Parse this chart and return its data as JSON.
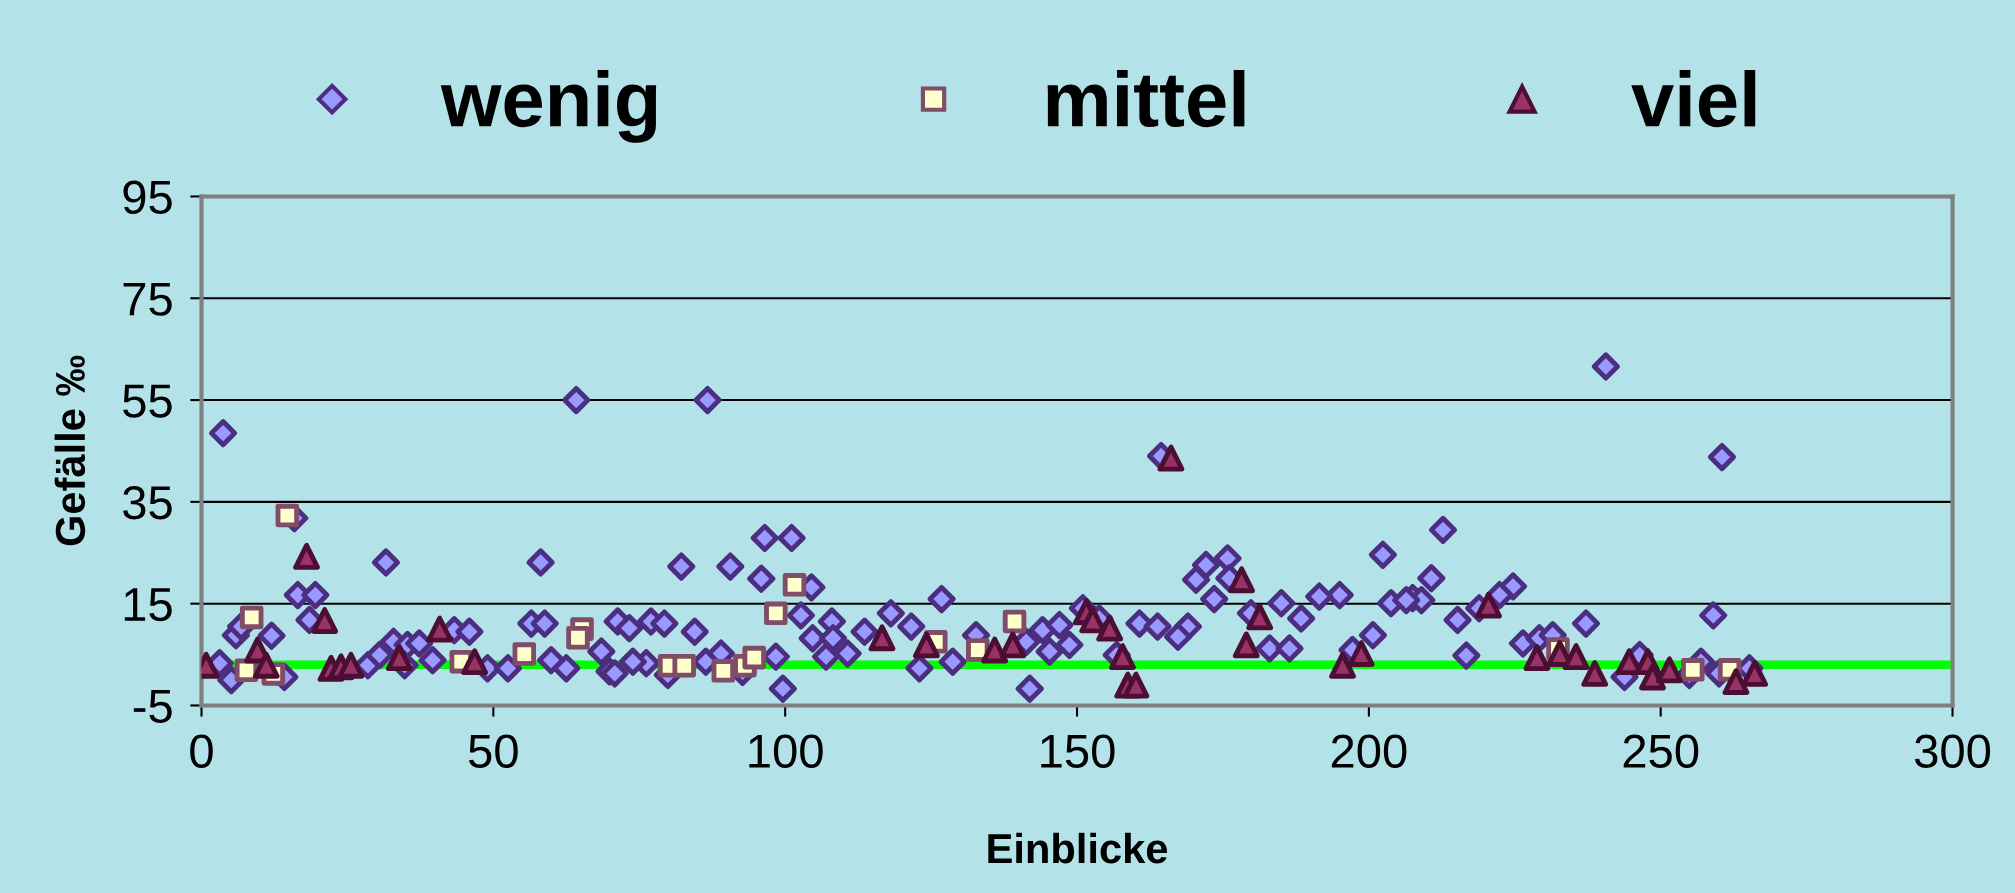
{
  "chart_data": {
    "type": "scatter",
    "xlabel": "Einblicke",
    "ylabel": "Gefälle ‰",
    "xlim": [
      0,
      300
    ],
    "xticks": [
      0,
      50,
      100,
      150,
      200,
      250,
      300
    ],
    "ylim": [
      -5,
      95
    ],
    "yticks": [
      -5,
      15,
      35,
      55,
      75,
      95
    ],
    "grid": "y",
    "legend": "top",
    "ref_lines": [
      {
        "axis": "y",
        "value": 3,
        "color": "#00ff00",
        "line_style": "solid"
      }
    ],
    "series": [
      {
        "name": "wenig",
        "color": "#9999ff",
        "marker": "diamond",
        "x": [
          3.7,
          64.2,
          15.9,
          31.6,
          58.1,
          16.5,
          19.5,
          18.5,
          5.9,
          6.8,
          12.0,
          3.1,
          5.1,
          14.2,
          28.5,
          30.5,
          32.9,
          35.3,
          37.3,
          34.8,
          39.6,
          43.3,
          45.9,
          49.0,
          52.5,
          56.5,
          58.8,
          59.9,
          62.5,
          68.5,
          69.9,
          86.7,
          82.2,
          90.6,
          96.5,
          101.1,
          95.9,
          104.5,
          102.7,
          126.8,
          118.1,
          121.6,
          108.0,
          104.7,
          108.2,
          107.0,
          110.7,
          113.6,
          98.4,
          99.6,
          123.0,
          128.7,
          132.7,
          71.3,
          73.3,
          77.0,
          79.3,
          84.5,
          70.8,
          76.2,
          73.9,
          86.4,
          89.0,
          79.9,
          92.7,
          164.4,
          202.4,
          170.4,
          172.1,
          175.8,
          176.1,
          173.5,
          185.0,
          195.0,
          191.5,
          188.4,
          203.8,
          207.5,
          179.8,
          183.0,
          186.4,
          200.7,
          197.2,
          141.9,
          144.1,
          145.3,
          148.7,
          147.0,
          151.0,
          153.8,
          160.7,
          163.8,
          169.0,
          167.3,
          141.3,
          156.8,
          240.6,
          260.5,
          212.7,
          210.7,
          209.0,
          206.4,
          224.7,
          222.4,
          215.2,
          218.9,
          216.7,
          237.2,
          259.0,
          226.4,
          229.2,
          231.5,
          243.8,
          246.4,
          256.9,
          265.2,
          254.9,
          260.0
        ],
        "values": [
          48.5,
          55,
          31.8,
          23.1,
          23.1,
          16.7,
          16.7,
          11.8,
          8.8,
          10.5,
          8.7,
          3.3,
          0,
          0.6,
          2.9,
          4.9,
          7.5,
          6.9,
          7.2,
          2.9,
          3.9,
          9.8,
          9.5,
          2.3,
          2.3,
          11.1,
          11.1,
          3.9,
          2.3,
          5.6,
          1.7,
          55,
          22.3,
          22.3,
          27.9,
          27.9,
          19.9,
          18.2,
          12.7,
          15.9,
          13.1,
          10.5,
          11.5,
          8.2,
          8.2,
          4.6,
          5.2,
          9.5,
          4.6,
          -1.7,
          2.3,
          3.6,
          8.8,
          11.5,
          10.2,
          11.5,
          11.1,
          9.5,
          1.3,
          3.3,
          3.6,
          3.6,
          5.2,
          1.0,
          1.6,
          44.0,
          24.6,
          19.7,
          22.6,
          23.9,
          20,
          15.9,
          15.1,
          16.7,
          16.4,
          12.1,
          15.1,
          16.1,
          13.1,
          6.2,
          6.2,
          8.8,
          5.9,
          -1.7,
          9.8,
          5.6,
          6.9,
          10.8,
          14.1,
          12.1,
          11.1,
          10.5,
          10.5,
          8.5,
          7.5,
          4.9,
          61.6,
          43.8,
          29.5,
          20,
          15.7,
          15.7,
          18.4,
          16.7,
          11.8,
          14.1,
          4.8,
          11.1,
          12.7,
          7.2,
          8.2,
          8.8,
          0.6,
          4.9,
          3.6,
          2.3,
          1.0,
          1.3
        ]
      },
      {
        "name": "mittel",
        "color": "#ffffcc",
        "marker": "square",
        "x": [
          14.7,
          8.6,
          7.7,
          12.3,
          55.3,
          65.2,
          64.5,
          44.5,
          101.6,
          98.4,
          80.2,
          82.7,
          89.4,
          93.1,
          94.7,
          125.8,
          133.0,
          139.3,
          196.7,
          232.4,
          237.7,
          255.5,
          261.8
        ],
        "values": [
          32.3,
          12.3,
          1.9,
          1.2,
          5.1,
          10.0,
          8.3,
          3.6,
          18.7,
          13.1,
          2.8,
          2.8,
          1.8,
          2.8,
          4.4,
          7.5,
          5.9,
          11.5,
          null,
          6.1,
          null,
          2.0,
          2.0
        ]
      },
      {
        "name": "viel",
        "color": "#993366",
        "marker": "triangle",
        "x": [
          0.8,
          9.6,
          11.1,
          18.0,
          21.1,
          22.2,
          23.9,
          25.6,
          33.9,
          40.8,
          46.8,
          116.6,
          124.2,
          135.9,
          139.0,
          151.6,
          152.7,
          155.6,
          157.8,
          158.7,
          160.1,
          166.1,
          178.2,
          181.3,
          179.0,
          195.5,
          198.7,
          220.5,
          228.8,
          232.7,
          235.5,
          238.7,
          244.6,
          247.8,
          248.6,
          251.5,
          262.9,
          266.1
        ],
        "values": [
          2.9,
          5.9,
          2.9,
          24.3,
          11.7,
          2.3,
          2.6,
          2.9,
          4.4,
          10.0,
          3.6,
          8.3,
          6.9,
          5.9,
          6.9,
          13.4,
          11.8,
          10.2,
          4.6,
          -1.0,
          -1.0,
          43.6,
          19.7,
          12.4,
          6.9,
          2.9,
          5.2,
          14.7,
          4.4,
          5.2,
          4.6,
          1.3,
          3.6,
          3.6,
          0.6,
          2.0,
          -0.3,
          1.3
        ]
      }
    ]
  }
}
